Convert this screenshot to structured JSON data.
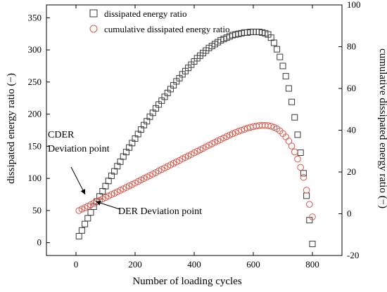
{
  "chart_data": {
    "type": "scatter",
    "xlabel": "Number of loading cycles",
    "ylabel_left": "dissipated energy ratio (−)",
    "ylabel_right": "cumulative dissipated energy ratio (−)",
    "xlim": [
      -100,
      900
    ],
    "xticks": [
      0,
      200,
      400,
      600,
      800
    ],
    "ylim_left": [
      -20,
      370
    ],
    "yticks_left": [
      0,
      50,
      100,
      150,
      200,
      250,
      300,
      350
    ],
    "ylim_right": [
      -20,
      100
    ],
    "yticks_right": [
      -20,
      0,
      20,
      40,
      60,
      80,
      100
    ],
    "legend_position": "top-left",
    "series": [
      {
        "name": "dissipated energy ratio",
        "axis": "left",
        "marker": "square",
        "color": "#3a3a3a",
        "x": [
          10,
          20,
          30,
          40,
          50,
          60,
          70,
          80,
          90,
          100,
          110,
          120,
          130,
          140,
          150,
          160,
          170,
          180,
          190,
          200,
          210,
          220,
          230,
          240,
          250,
          260,
          270,
          280,
          290,
          300,
          310,
          320,
          330,
          340,
          350,
          360,
          370,
          380,
          390,
          400,
          410,
          420,
          430,
          440,
          450,
          460,
          470,
          480,
          490,
          500,
          510,
          520,
          530,
          540,
          550,
          560,
          570,
          580,
          590,
          600,
          610,
          620,
          630,
          640,
          650,
          660,
          670,
          680,
          690,
          700,
          710,
          720,
          730,
          740,
          750,
          760,
          770,
          780,
          790,
          800
        ],
        "y": [
          10,
          19,
          29,
          38,
          47,
          56,
          64,
          72,
          80,
          88,
          96,
          104,
          111,
          119,
          126,
          134,
          141,
          148,
          155,
          162,
          169,
          176,
          183,
          189,
          196,
          202,
          209,
          215,
          221,
          227,
          233,
          239,
          245,
          251,
          256,
          262,
          267,
          272,
          277,
          282,
          287,
          291,
          295,
          299,
          303,
          306,
          309,
          312,
          315,
          317,
          319,
          321,
          323,
          324,
          325,
          326,
          327,
          327,
          328,
          328,
          328,
          328,
          327,
          326,
          324,
          319,
          311,
          301,
          289,
          275,
          259,
          240,
          219,
          195,
          168,
          140,
          108,
          73,
          35,
          -2
        ]
      },
      {
        "name": "cumulative dissipated energy ratio",
        "axis": "right",
        "marker": "circle",
        "color": "#d9574a",
        "x": [
          10,
          20,
          30,
          40,
          50,
          60,
          70,
          80,
          90,
          100,
          110,
          120,
          130,
          140,
          150,
          160,
          170,
          180,
          190,
          200,
          210,
          220,
          230,
          240,
          250,
          260,
          270,
          280,
          290,
          300,
          310,
          320,
          330,
          340,
          350,
          360,
          370,
          380,
          390,
          400,
          410,
          420,
          430,
          440,
          450,
          460,
          470,
          480,
          490,
          500,
          510,
          520,
          530,
          540,
          550,
          560,
          570,
          580,
          590,
          600,
          610,
          620,
          630,
          640,
          650,
          660,
          670,
          680,
          690,
          700,
          710,
          720,
          730,
          740,
          750,
          760,
          770,
          780,
          790,
          800
        ],
        "y": [
          1.5,
          2.2,
          2.9,
          3.6,
          4.3,
          5.0,
          5.7,
          6.4,
          7.1,
          7.8,
          8.5,
          9.2,
          9.8,
          10.5,
          11.2,
          11.9,
          12.6,
          13.3,
          14.0,
          14.7,
          15.4,
          16.2,
          16.9,
          17.6,
          18.3,
          19.0,
          19.7,
          20.5,
          21.2,
          21.9,
          22.6,
          23.4,
          24.1,
          24.8,
          25.5,
          26.3,
          27.0,
          27.7,
          28.4,
          29.2,
          29.9,
          30.6,
          31.3,
          32.1,
          32.8,
          33.5,
          34.2,
          34.9,
          35.6,
          36.3,
          37.0,
          37.7,
          38.3,
          38.9,
          39.5,
          40.0,
          40.5,
          41.0,
          41.4,
          41.7,
          42.0,
          42.2,
          42.3,
          42.3,
          42.2,
          41.9,
          41.4,
          40.7,
          39.7,
          38.4,
          36.8,
          34.8,
          32.4,
          29.6,
          26.2,
          22.2,
          17.4,
          11.3,
          4.5,
          -1.5
        ]
      }
    ],
    "annotations": [
      {
        "id": "cder",
        "lines": [
          "CDER",
          "Deviation point"
        ]
      },
      {
        "id": "der",
        "lines": [
          "DER Deviation point"
        ]
      }
    ]
  }
}
